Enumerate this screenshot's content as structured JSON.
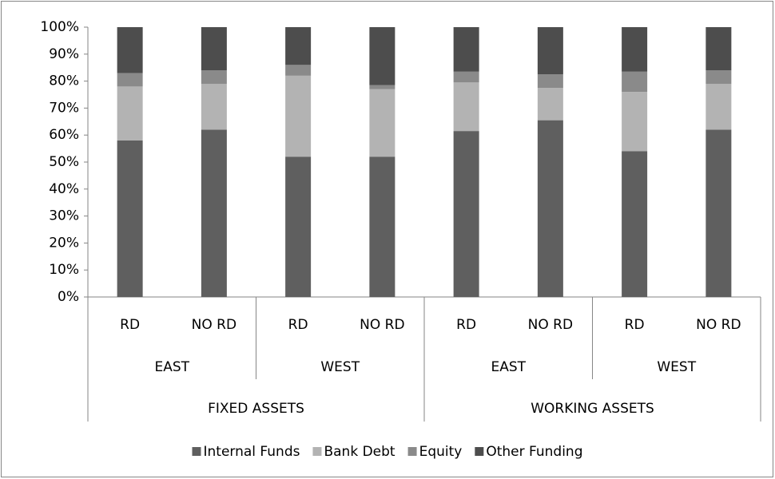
{
  "chart_data": {
    "type": "stacked_bar",
    "categories": [
      "RD",
      "NO RD",
      "RD",
      "NO RD",
      "RD",
      "NO RD",
      "RD",
      "NO RD"
    ],
    "groups": [
      "EAST",
      "WEST",
      "EAST",
      "WEST"
    ],
    "supergroups": [
      "FIXED ASSETS",
      "WORKING ASSETS"
    ],
    "series": [
      {
        "name": "Internal Funds",
        "color": "#5f5f5f",
        "values": [
          58,
          62,
          52,
          52,
          61.5,
          65.5,
          54,
          62
        ]
      },
      {
        "name": "Bank Debt",
        "color": "#b3b3b3",
        "values": [
          20,
          17,
          30,
          25,
          18,
          12,
          22,
          17
        ]
      },
      {
        "name": "Equity",
        "color": "#8a8a8a",
        "values": [
          5,
          5,
          4,
          1.5,
          4,
          5,
          7.5,
          5
        ]
      },
      {
        "name": "Other Funding",
        "color": "#4d4d4d",
        "values": [
          17,
          16,
          14,
          21.5,
          16.5,
          17.5,
          16.5,
          16
        ]
      }
    ],
    "ylim": [
      0,
      100
    ],
    "yticks": [
      {
        "value": 0,
        "label": "0%"
      },
      {
        "value": 10,
        "label": "10%"
      },
      {
        "value": 20,
        "label": "20%"
      },
      {
        "value": 30,
        "label": "30%"
      },
      {
        "value": 40,
        "label": "40%"
      },
      {
        "value": 50,
        "label": "50%"
      },
      {
        "value": 60,
        "label": "60%"
      },
      {
        "value": 70,
        "label": "70%"
      },
      {
        "value": 80,
        "label": "80%"
      },
      {
        "value": 90,
        "label": "90%"
      },
      {
        "value": 100,
        "label": "100%"
      }
    ],
    "legend": "bottom"
  }
}
